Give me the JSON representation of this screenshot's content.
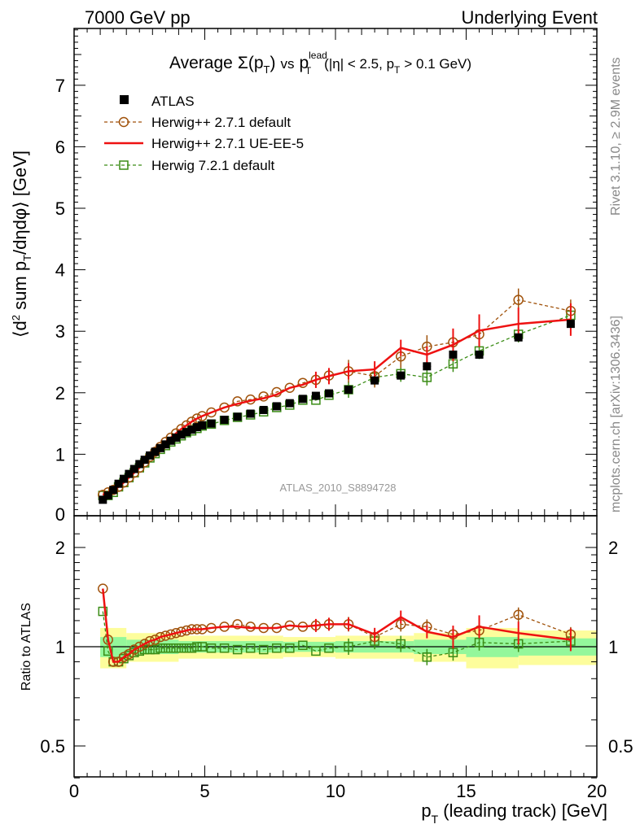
{
  "header": {
    "left": "7000 GeV pp",
    "right": "Underlying Event"
  },
  "side_text": {
    "rivet": "Rivet 3.1.10, ≥ 2.9M events",
    "mcplots": "mcplots.cern.ch [arXiv:1306.3436]"
  },
  "analysis_id": "ATLAS_2010_S8894728",
  "colors": {
    "atlas": "#000000",
    "herwig_default": "#a0520b",
    "herwig_ueee5": "#ee1111",
    "herwig721": "#3a8c15",
    "band_inner": "#94f79b",
    "band_outer": "#fdfd9c"
  },
  "chart_data": [
    {
      "type": "scatter",
      "panel": "main",
      "title_parts": {
        "pre": "Average",
        "sigma": "Σ(p",
        "sigma_sub": "T",
        "sigma_close": ")",
        "vs": "vs",
        "p": "p",
        "p_sup": "lead",
        "p_sub": "T",
        "cut1": "(|η| < 2.5, p",
        "cut1_sub": "T",
        "cut2": "> 0.1 GeV)"
      },
      "ylabel_parts": {
        "open": "⟨d",
        "sup": "2",
        "mid": " sum p",
        "sub": "T",
        "close": "/dηdφ⟩ [GeV]"
      },
      "xlim": [
        0,
        20
      ],
      "ylim": [
        0,
        8
      ],
      "yticks": [
        "1",
        "2",
        "3",
        "4",
        "5",
        "6",
        "7"
      ],
      "x": [
        1.1,
        1.3,
        1.5,
        1.7,
        1.9,
        2.1,
        2.3,
        2.5,
        2.7,
        2.9,
        3.1,
        3.3,
        3.5,
        3.7,
        3.9,
        4.1,
        4.3,
        4.5,
        4.7,
        4.9,
        5.25,
        5.75,
        6.25,
        6.75,
        7.25,
        7.75,
        8.25,
        8.75,
        9.25,
        9.75,
        10.5,
        11.5,
        12.5,
        13.5,
        14.5,
        15.5,
        17.0,
        19.0
      ],
      "series": [
        {
          "name": "ATLAS",
          "marker": "filled-square",
          "values": [
            0.26,
            0.33,
            0.42,
            0.52,
            0.6,
            0.68,
            0.76,
            0.84,
            0.91,
            0.98,
            1.04,
            1.1,
            1.16,
            1.22,
            1.27,
            1.32,
            1.36,
            1.4,
            1.44,
            1.47,
            1.5,
            1.56,
            1.61,
            1.66,
            1.72,
            1.78,
            1.83,
            1.9,
            1.95,
            1.99,
            2.05,
            2.2,
            2.28,
            2.43,
            2.62,
            2.62,
            2.9,
            3.12
          ]
        },
        {
          "name": "Herwig++ 2.7.1 default",
          "marker": "open-circle",
          "values": [
            0.34,
            0.38,
            0.42,
            0.47,
            0.54,
            0.62,
            0.7,
            0.78,
            0.87,
            0.96,
            1.04,
            1.12,
            1.2,
            1.27,
            1.34,
            1.41,
            1.47,
            1.53,
            1.58,
            1.62,
            1.68,
            1.76,
            1.86,
            1.89,
            1.94,
            2.01,
            2.08,
            2.16,
            2.21,
            2.28,
            2.35,
            2.27,
            2.59,
            2.75,
            2.82,
            2.95,
            3.51,
            3.33
          ]
        },
        {
          "name": "Herwig++ 2.7.1 UE-EE-5",
          "marker": "line",
          "values": [
            0.34,
            0.38,
            0.42,
            0.47,
            0.54,
            0.62,
            0.7,
            0.78,
            0.87,
            0.96,
            1.04,
            1.12,
            1.2,
            1.27,
            1.34,
            1.41,
            1.47,
            1.53,
            1.58,
            1.62,
            1.68,
            1.76,
            1.82,
            1.87,
            1.91,
            1.97,
            2.08,
            2.13,
            2.21,
            2.27,
            2.35,
            2.38,
            2.73,
            2.62,
            2.78,
            3.01,
            3.12,
            3.19
          ]
        },
        {
          "name": "Herwig 7.2.1 default",
          "marker": "open-square",
          "values": [
            0.33,
            0.33,
            0.38,
            0.47,
            0.54,
            0.62,
            0.7,
            0.78,
            0.86,
            0.94,
            1.01,
            1.08,
            1.14,
            1.2,
            1.25,
            1.3,
            1.35,
            1.38,
            1.42,
            1.46,
            1.49,
            1.55,
            1.6,
            1.64,
            1.69,
            1.76,
            1.8,
            1.88,
            1.88,
            1.96,
            2.05,
            2.25,
            2.31,
            2.25,
            2.47,
            2.68,
            2.95,
            3.26
          ]
        }
      ]
    },
    {
      "type": "scatter",
      "panel": "ratio",
      "ylabel": "Ratio to ATLAS",
      "xlabel_parts": {
        "p": "p",
        "sub": "T",
        "rest": " (leading track) [GeV]"
      },
      "xlim": [
        0,
        20
      ],
      "ylim": [
        0.35,
        2.35
      ],
      "xticks": [
        "0",
        "5",
        "10",
        "15",
        "20"
      ],
      "yticks": [
        "0.5",
        "1",
        "2"
      ],
      "x": [
        1.1,
        1.3,
        1.5,
        1.7,
        1.9,
        2.1,
        2.3,
        2.5,
        2.7,
        2.9,
        3.1,
        3.3,
        3.5,
        3.7,
        3.9,
        4.1,
        4.3,
        4.5,
        4.7,
        4.9,
        5.25,
        5.75,
        6.25,
        6.75,
        7.25,
        7.75,
        8.25,
        8.75,
        9.25,
        9.75,
        10.5,
        11.5,
        12.5,
        13.5,
        14.5,
        15.5,
        17.0,
        19.0
      ],
      "series": [
        {
          "name": "Herwig++ 2.7.1 default",
          "values": [
            1.5,
            1.05,
            0.9,
            0.9,
            0.93,
            0.95,
            0.98,
            1.0,
            1.02,
            1.04,
            1.05,
            1.07,
            1.08,
            1.09,
            1.1,
            1.11,
            1.12,
            1.13,
            1.13,
            1.13,
            1.14,
            1.15,
            1.17,
            1.15,
            1.14,
            1.14,
            1.16,
            1.15,
            1.16,
            1.17,
            1.17,
            1.07,
            1.17,
            1.15,
            1.09,
            1.12,
            1.25,
            1.09
          ]
        },
        {
          "name": "Herwig++ 2.7.1 UE-EE-5",
          "values": [
            1.5,
            1.05,
            0.9,
            0.9,
            0.93,
            0.95,
            0.98,
            1.0,
            1.02,
            1.04,
            1.05,
            1.07,
            1.08,
            1.09,
            1.1,
            1.11,
            1.12,
            1.13,
            1.13,
            1.13,
            1.14,
            1.15,
            1.15,
            1.14,
            1.14,
            1.14,
            1.16,
            1.15,
            1.16,
            1.17,
            1.17,
            1.09,
            1.23,
            1.11,
            1.07,
            1.15,
            1.1,
            1.05
          ]
        },
        {
          "name": "Herwig 7.2.1 default",
          "values": [
            1.28,
            0.97,
            0.9,
            0.9,
            0.92,
            0.94,
            0.96,
            0.97,
            0.98,
            0.98,
            0.98,
            0.99,
            0.99,
            0.99,
            0.99,
            0.99,
            0.99,
            0.99,
            1.0,
            1.0,
            0.99,
            0.99,
            0.98,
            0.99,
            0.98,
            0.99,
            0.99,
            1.01,
            0.97,
            0.99,
            1.0,
            1.04,
            1.02,
            0.93,
            0.96,
            1.03,
            1.02,
            1.04
          ]
        }
      ]
    }
  ]
}
